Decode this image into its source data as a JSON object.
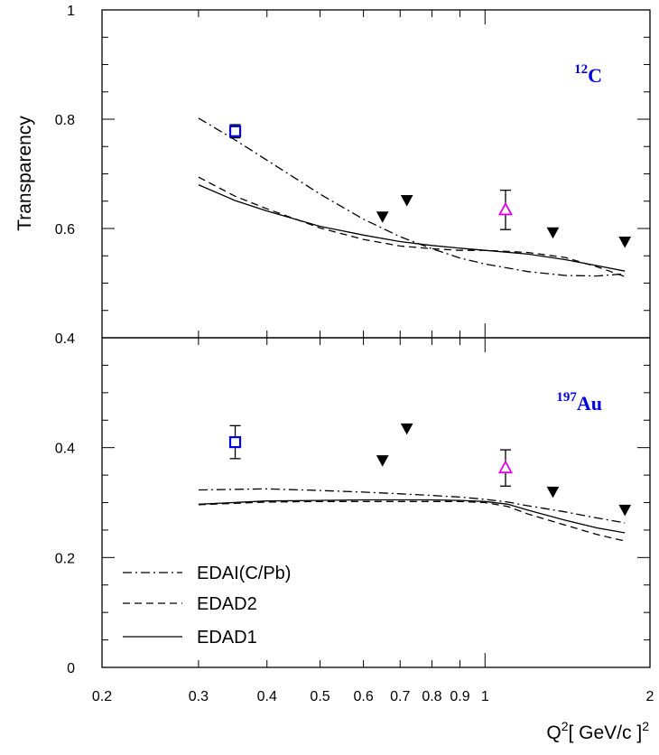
{
  "chart_data": {
    "type": "scatter",
    "x_scale": "log",
    "xlim": [
      0.2,
      2.0
    ],
    "xlabel": {
      "base": "Q",
      "sup": "2",
      "unit_open": "[ GeV/c ]",
      "unit_sup": "2"
    },
    "ylabel": "Transparency",
    "x_tick_labels": [
      {
        "value": 0.2,
        "label": "0.2"
      },
      {
        "value": 0.3,
        "label": "0.3"
      },
      {
        "value": 0.4,
        "label": "0.4"
      },
      {
        "value": 0.5,
        "label": "0.5"
      },
      {
        "value": 0.6,
        "label": "0.6"
      },
      {
        "value": 0.7,
        "label": "0.7"
      },
      {
        "value": 0.8,
        "label": "0.8"
      },
      {
        "value": 0.9,
        "label": "0.9"
      },
      {
        "value": 1.0,
        "label": "1"
      },
      {
        "value": 2.0,
        "label": "2"
      }
    ],
    "legend": {
      "placement": "bottom-left of lower panel",
      "entries": [
        {
          "label": "EDAI(C/Pb)",
          "style": "dashdot"
        },
        {
          "label": "EDAD2",
          "style": "dashed"
        },
        {
          "label": "EDAD1",
          "style": "solid"
        }
      ]
    },
    "panels": [
      {
        "id": "carbon",
        "nucleus": {
          "mass": "12",
          "symbol": "C"
        },
        "label_color": "#0000dd",
        "ylim": [
          0.4,
          1.0
        ],
        "y_ticks": [
          {
            "value": 0.4,
            "label": "0.4"
          },
          {
            "value": 0.6,
            "label": "0.6"
          },
          {
            "value": 0.8,
            "label": "0.8"
          },
          {
            "value": 1.0,
            "label": "1"
          }
        ],
        "points": [
          {
            "marker": "square",
            "color": "#0000dd",
            "x": 0.35,
            "y": 0.778,
            "err": 0.012
          },
          {
            "marker": "triangle-open",
            "color": "#e000e0",
            "x": 1.09,
            "y": 0.634,
            "err": 0.036
          },
          {
            "marker": "triangle-down",
            "color": "#000000",
            "x": 0.65,
            "y": 0.622
          },
          {
            "marker": "triangle-down",
            "color": "#000000",
            "x": 0.72,
            "y": 0.652
          },
          {
            "marker": "triangle-down",
            "color": "#000000",
            "x": 1.33,
            "y": 0.593
          },
          {
            "marker": "triangle-down",
            "color": "#000000",
            "x": 1.8,
            "y": 0.576
          }
        ],
        "series": [
          {
            "name": "EDAI(C/Pb)",
            "style": "dashdot",
            "x": [
              0.3,
              0.35,
              0.4,
              0.5,
              0.6,
              0.7,
              0.8,
              0.9,
              1.0,
              1.2,
              1.4,
              1.6,
              1.8
            ],
            "y": [
              0.802,
              0.762,
              0.725,
              0.663,
              0.617,
              0.585,
              0.563,
              0.546,
              0.535,
              0.521,
              0.514,
              0.513,
              0.517
            ]
          },
          {
            "name": "EDAD2",
            "style": "dashed",
            "x": [
              0.3,
              0.35,
              0.4,
              0.5,
              0.6,
              0.7,
              0.8,
              0.9,
              1.0,
              1.2,
              1.4,
              1.6,
              1.8
            ],
            "y": [
              0.694,
              0.659,
              0.636,
              0.601,
              0.58,
              0.568,
              0.563,
              0.56,
              0.56,
              0.556,
              0.547,
              0.53,
              0.512
            ]
          },
          {
            "name": "EDAD1",
            "style": "solid",
            "x": [
              0.3,
              0.35,
              0.4,
              0.5,
              0.6,
              0.7,
              0.8,
              0.9,
              1.0,
              1.2,
              1.4,
              1.6,
              1.8
            ],
            "y": [
              0.68,
              0.651,
              0.632,
              0.604,
              0.588,
              0.576,
              0.569,
              0.564,
              0.56,
              0.553,
              0.543,
              0.532,
              0.522
            ]
          }
        ]
      },
      {
        "id": "gold",
        "nucleus": {
          "mass": "197",
          "symbol": "Au"
        },
        "label_color": "#0000dd",
        "ylim": [
          0.0,
          0.6
        ],
        "y_ticks": [
          {
            "value": 0.0,
            "label": "0"
          },
          {
            "value": 0.2,
            "label": "0.2"
          },
          {
            "value": 0.4,
            "label": "0.4"
          }
        ],
        "points": [
          {
            "marker": "square",
            "color": "#0000dd",
            "x": 0.35,
            "y": 0.41,
            "err": 0.03
          },
          {
            "marker": "triangle-open",
            "color": "#e000e0",
            "x": 1.09,
            "y": 0.363,
            "err": 0.033
          },
          {
            "marker": "triangle-down",
            "color": "#000000",
            "x": 0.65,
            "y": 0.377
          },
          {
            "marker": "triangle-down",
            "color": "#000000",
            "x": 0.72,
            "y": 0.435
          },
          {
            "marker": "triangle-down",
            "color": "#000000",
            "x": 1.33,
            "y": 0.32
          },
          {
            "marker": "triangle-down",
            "color": "#000000",
            "x": 1.8,
            "y": 0.287
          }
        ],
        "series": [
          {
            "name": "EDAI(C/Pb)",
            "style": "dashdot",
            "x": [
              0.3,
              0.4,
              0.5,
              0.6,
              0.7,
              0.8,
              0.9,
              1.0,
              1.1,
              1.2,
              1.4,
              1.6,
              1.8
            ],
            "y": [
              0.323,
              0.325,
              0.322,
              0.319,
              0.316,
              0.313,
              0.31,
              0.306,
              0.301,
              0.294,
              0.283,
              0.272,
              0.263
            ]
          },
          {
            "name": "EDAD2",
            "style": "dashed",
            "x": [
              0.3,
              0.4,
              0.5,
              0.6,
              0.7,
              0.8,
              0.9,
              1.0,
              1.1,
              1.2,
              1.4,
              1.6,
              1.8
            ],
            "y": [
              0.296,
              0.301,
              0.302,
              0.302,
              0.302,
              0.302,
              0.302,
              0.3,
              0.293,
              0.279,
              0.259,
              0.242,
              0.23
            ]
          },
          {
            "name": "EDAD1",
            "style": "solid",
            "x": [
              0.3,
              0.4,
              0.5,
              0.6,
              0.7,
              0.8,
              0.9,
              1.0,
              1.1,
              1.2,
              1.4,
              1.6,
              1.8
            ],
            "y": [
              0.297,
              0.303,
              0.304,
              0.305,
              0.305,
              0.305,
              0.304,
              0.302,
              0.297,
              0.286,
              0.268,
              0.254,
              0.245
            ]
          }
        ]
      }
    ]
  }
}
